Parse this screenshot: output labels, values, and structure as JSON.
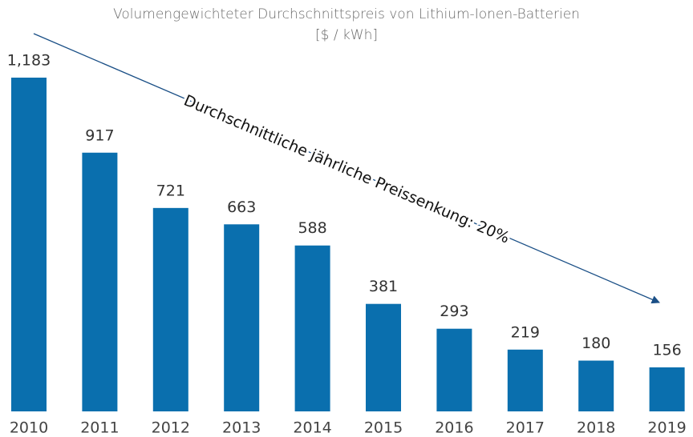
{
  "chart_data": {
    "type": "bar",
    "title": "Volumengewichteter Durchschnittspreis von Lithium-Ionen-Batterien",
    "subtitle": "[$ / kWh]",
    "annotation": "Durchschnittliche jährliche Preissenkung: 20%",
    "categories": [
      "2010",
      "2011",
      "2012",
      "2013",
      "2014",
      "2015",
      "2016",
      "2017",
      "2018",
      "2019"
    ],
    "values": [
      1183,
      917,
      721,
      663,
      588,
      381,
      293,
      219,
      180,
      156
    ],
    "value_labels": [
      "1,183",
      "917",
      "721",
      "663",
      "588",
      "381",
      "293",
      "219",
      "180",
      "156"
    ],
    "color": "#0a6fae",
    "ylim": [
      0,
      1200
    ]
  }
}
